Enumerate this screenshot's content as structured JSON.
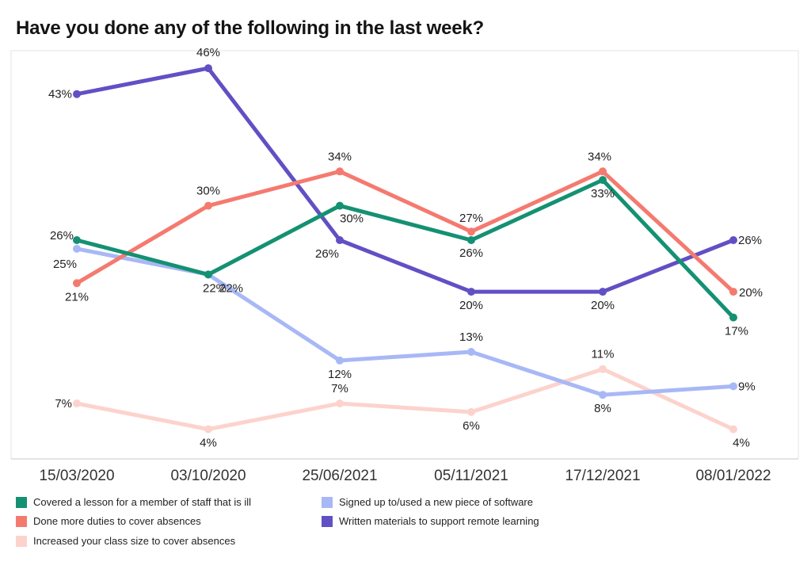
{
  "chart_data": {
    "type": "line",
    "title": "Have you done any of the following in the last week?",
    "categories": [
      "15/03/2020",
      "03/10/2020",
      "25/06/2021",
      "05/11/2021",
      "17/12/2021",
      "08/01/2022"
    ],
    "ylim": [
      0,
      50
    ],
    "grid": false,
    "legend_position": "bottom",
    "series": [
      {
        "name": "Covered a lesson for a member of staff that is ill",
        "color": "#149172",
        "values": [
          26,
          22,
          30,
          26,
          33,
          17
        ]
      },
      {
        "name": "Done more duties to cover absences",
        "color": "#f47a70",
        "values": [
          21,
          30,
          34,
          27,
          34,
          20
        ]
      },
      {
        "name": "Increased your class size to cover absences",
        "color": "#fcd3cc",
        "values": [
          7,
          4,
          7,
          6,
          11,
          4
        ]
      },
      {
        "name": "Signed up to/used a new piece of software",
        "color": "#a8b8f6",
        "values": [
          25,
          22,
          12,
          13,
          8,
          9
        ]
      },
      {
        "name": "Written materials to support remote learning",
        "color": "#6150c4",
        "values": [
          43,
          46,
          26,
          20,
          20,
          26
        ]
      }
    ]
  }
}
